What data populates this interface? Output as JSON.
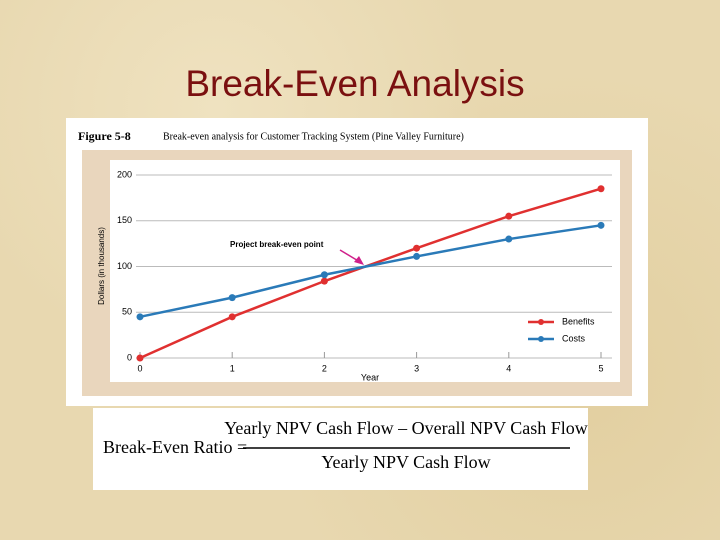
{
  "slide_title": "Break-Even Analysis",
  "formula": {
    "lhs": "Break-Even Ratio =",
    "numerator": "Yearly NPV Cash Flow – Overall NPV Cash Flow",
    "denominator": "Yearly NPV Cash Flow"
  },
  "chart_data": {
    "type": "line",
    "figure_label": "Figure 5-8",
    "title": "Break-even analysis for Customer Tracking System (Pine Valley Furniture)",
    "x_label": "Year",
    "y_label": "Dollars (in thousands)",
    "annotation": "Project break-even point",
    "x": [
      0,
      1,
      2,
      3,
      4,
      5
    ],
    "series": [
      {
        "name": "Benefits",
        "color": "#e03030",
        "values": [
          0,
          45,
          84,
          120,
          155,
          185
        ]
      },
      {
        "name": "Costs",
        "color": "#2a7ab8",
        "values": [
          45,
          66,
          91,
          111,
          130,
          145
        ]
      }
    ],
    "xlim": [
      0,
      5
    ],
    "xticks": [
      0,
      1,
      2,
      3,
      4,
      5
    ],
    "ylim": [
      0,
      200
    ],
    "yticks": [
      0,
      50,
      100,
      150,
      200
    ],
    "grid": true,
    "legend": "lower right"
  }
}
